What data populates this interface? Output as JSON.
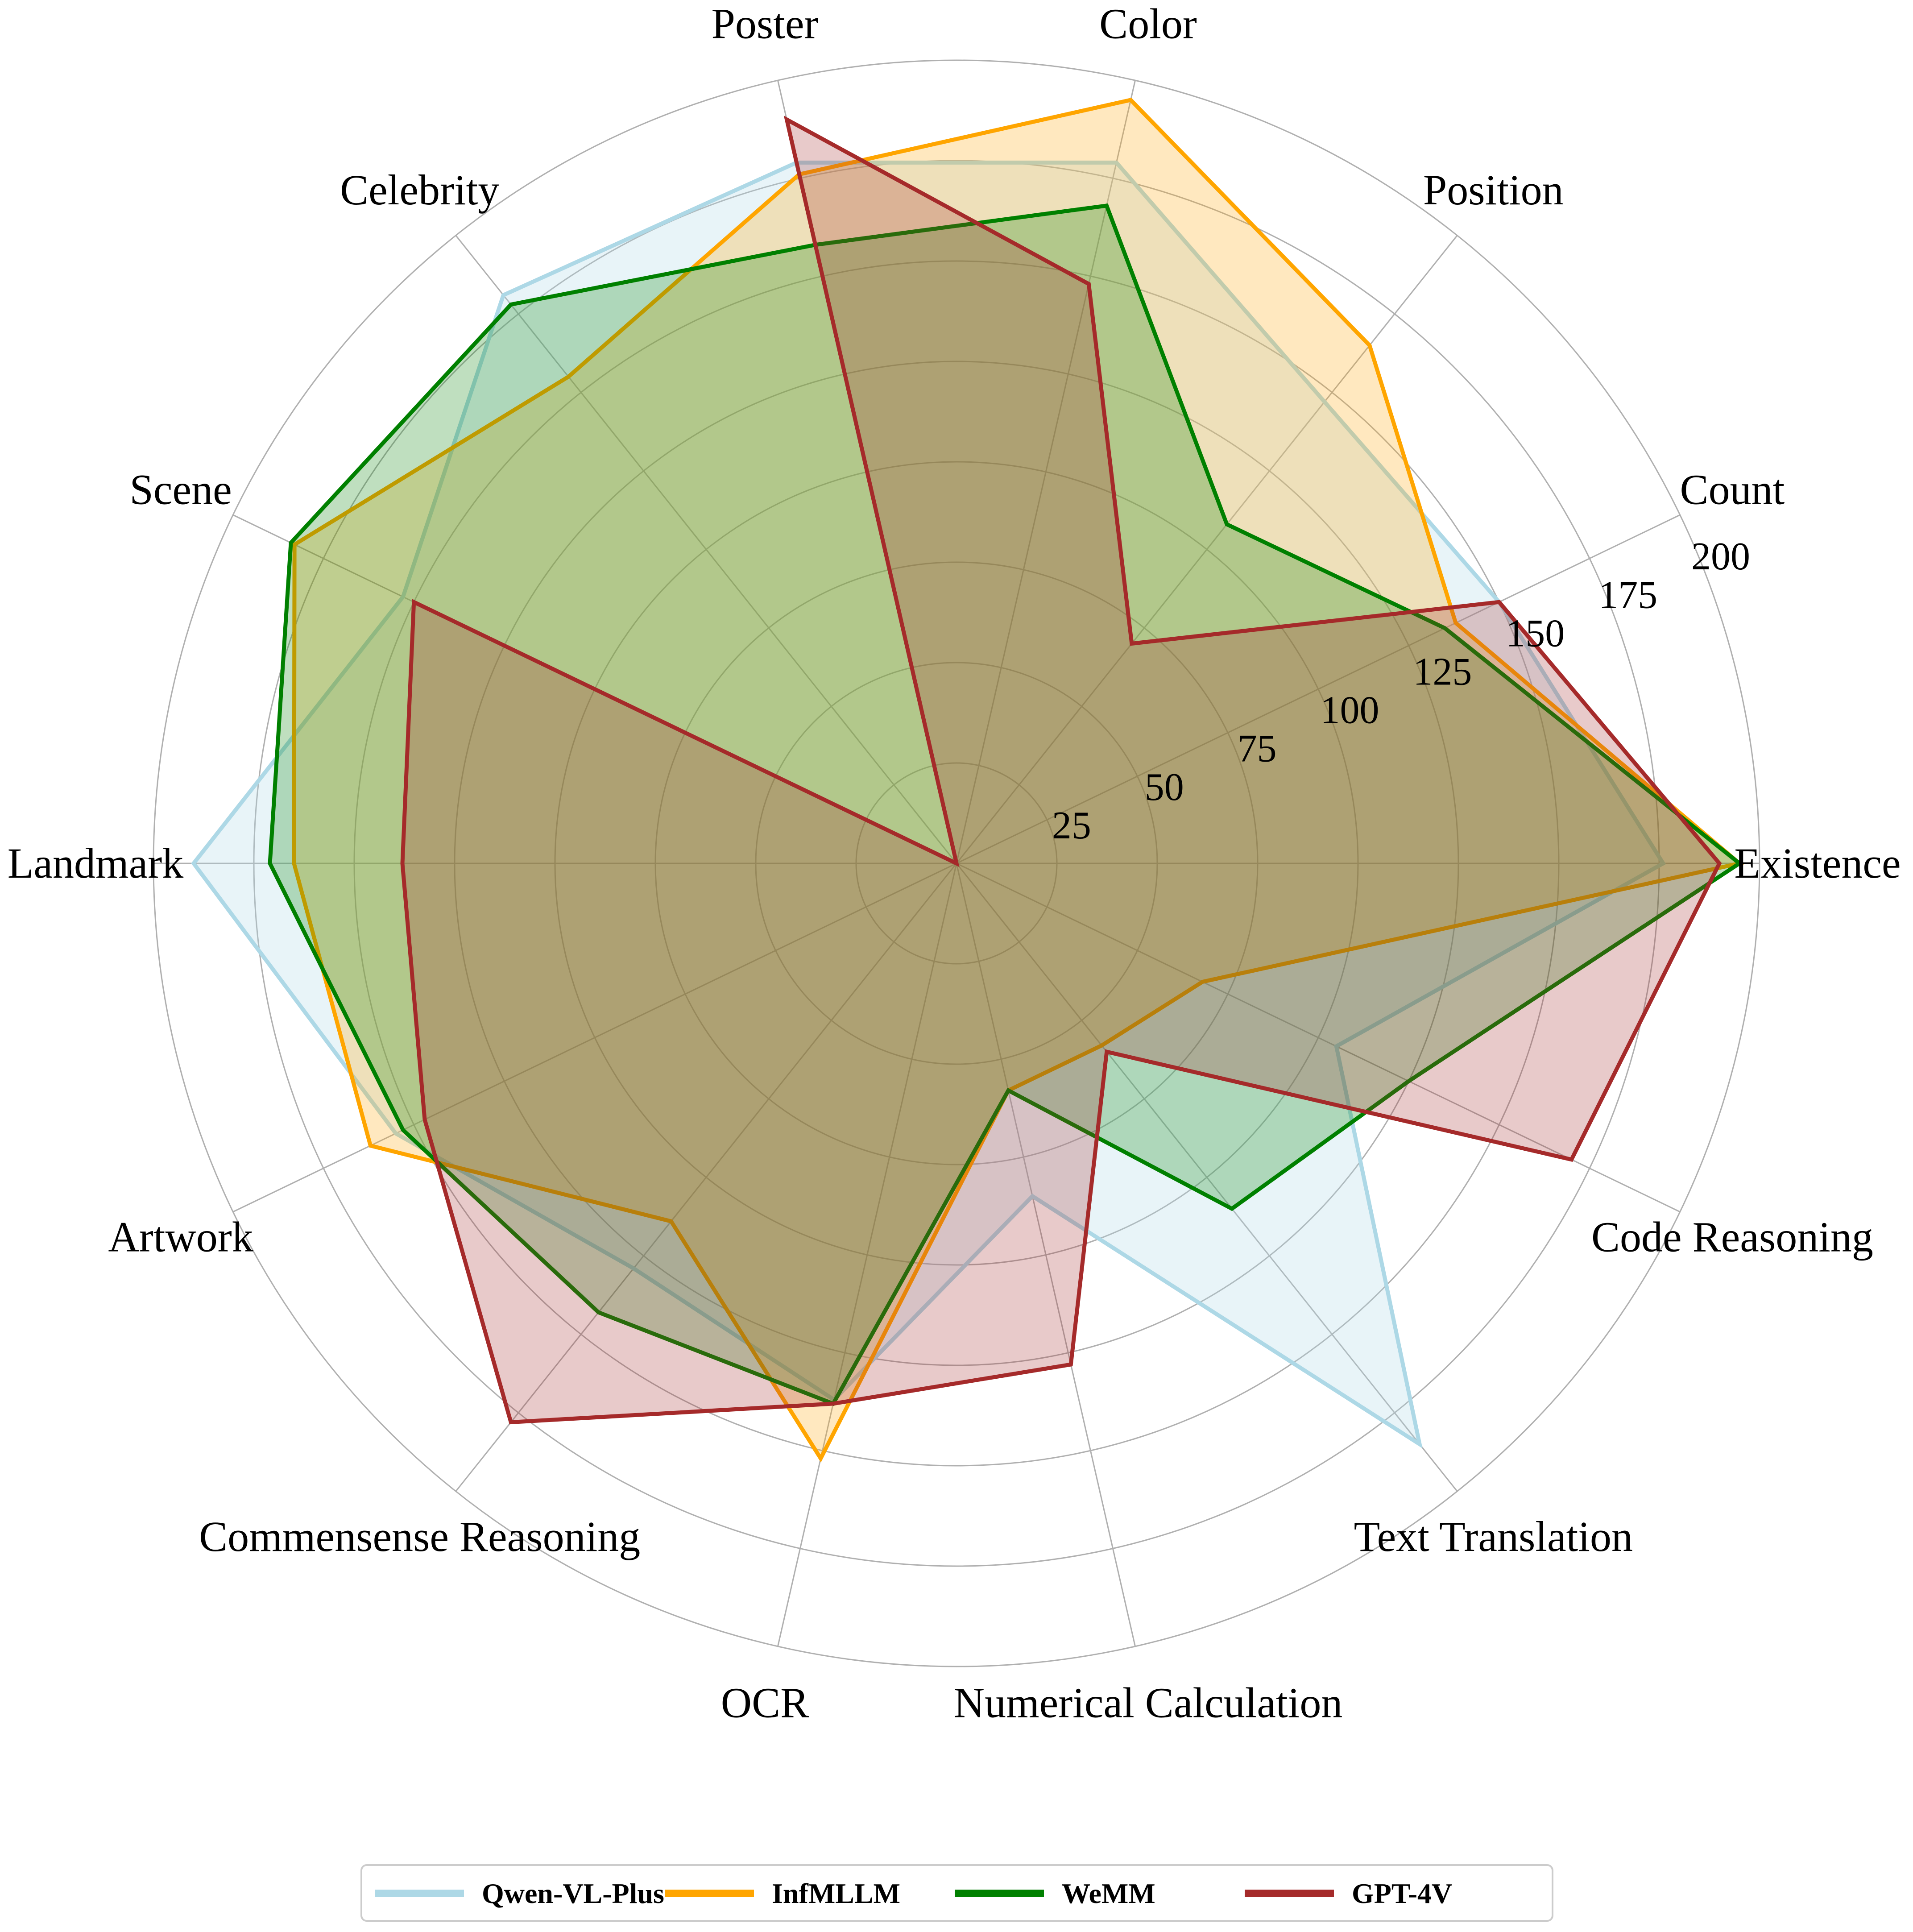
{
  "chart_data": {
    "type": "radar",
    "categories": [
      "Existence",
      "Count",
      "Position",
      "Color",
      "Poster",
      "Celebrity",
      "Scene",
      "Landmark",
      "Artwork",
      "Commensense Reasoning",
      "OCR",
      "Numerical Calculation",
      "Text Translation",
      "Code Reasoning"
    ],
    "radial_ticks": [
      25,
      50,
      75,
      100,
      125,
      150,
      175,
      200
    ],
    "rlim": [
      0,
      200
    ],
    "grid": true,
    "legend_position": "bottom-center",
    "series": [
      {
        "name": "Qwen-VL-Plus",
        "color": "#add8e6",
        "fill_opacity": 0.28,
        "values": [
          176,
          150,
          147,
          179,
          179,
          181,
          153,
          190,
          155,
          129,
          137,
          85,
          185,
          105
        ]
      },
      {
        "name": "InfMLLM",
        "color": "#ffa500",
        "fill_opacity": 0.25,
        "values": [
          195,
          138,
          165,
          195,
          176,
          155,
          183,
          165,
          162,
          114,
          152,
          58,
          58,
          68
        ]
      },
      {
        "name": "WeMM",
        "color": "#008000",
        "fill_opacity": 0.25,
        "values": [
          195,
          135,
          108,
          168,
          158,
          178,
          184,
          171,
          153,
          143,
          138,
          58,
          110,
          125
        ]
      },
      {
        "name": "GPT-4V",
        "color": "#a52a2a",
        "fill_opacity": 0.25,
        "values": [
          190,
          150,
          70,
          148,
          190,
          0,
          150,
          138,
          147,
          178,
          138,
          128,
          60,
          170
        ]
      }
    ]
  }
}
